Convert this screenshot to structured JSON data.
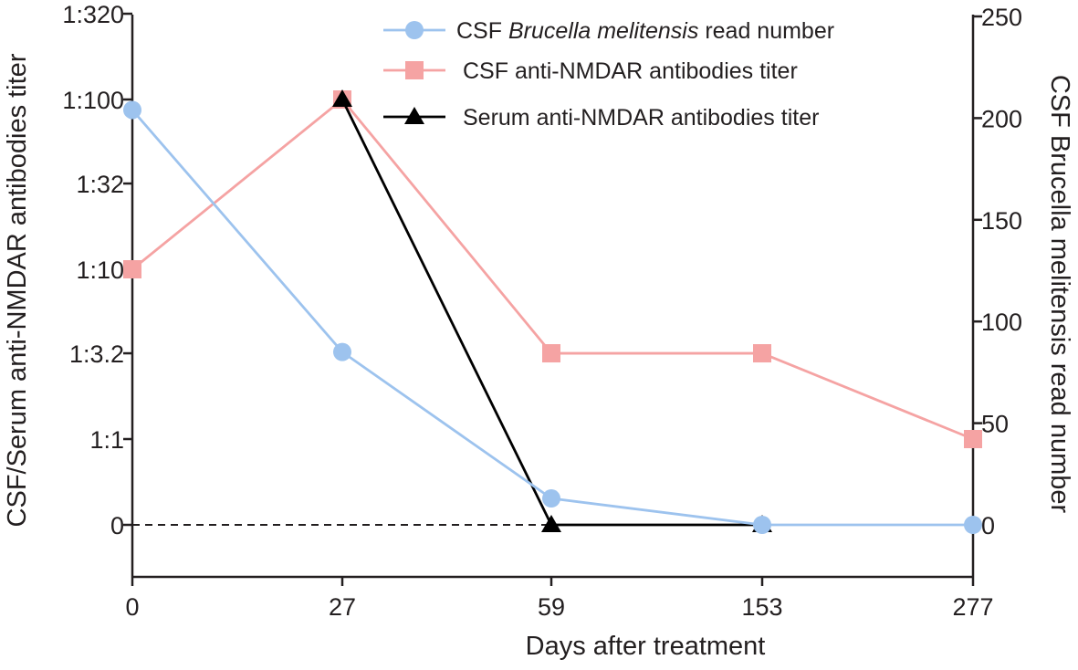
{
  "chart_data": {
    "type": "line",
    "xlabel": "Days after treatment",
    "categories": [
      "0",
      "27",
      "59",
      "153",
      "277"
    ],
    "left_axis": {
      "label": "CSF/Serum anti-NMDAR antibodies titer",
      "tick_labels": [
        "0",
        "1:1",
        "1:3.2",
        "1:10",
        "1:32",
        "1:100",
        "1:320"
      ],
      "scale": "log10 titer levels shown as ordinal ticks (0 = undetectable)"
    },
    "right_axis": {
      "label": "CSF Brucella melitensis read number",
      "ticks": [
        0,
        50,
        100,
        150,
        200,
        250
      ],
      "ylim": [
        0,
        250
      ]
    },
    "series": [
      {
        "name": "CSF Brucella melitensis read number",
        "name_plain": "CSF ",
        "name_italic": "Brucella melitensis",
        "name_rest": " read number",
        "axis": "right",
        "marker": "circle",
        "color": "#9dc3ee",
        "values": [
          204,
          85,
          13,
          0,
          0
        ]
      },
      {
        "name": "CSF anti-NMDAR antibodies titer",
        "axis": "left",
        "marker": "square",
        "color": "#f5a3a3",
        "values": [
          "1:10",
          "1:100",
          "1:3.2",
          "1:3.2",
          "1:1"
        ]
      },
      {
        "name": "Serum anti-NMDAR antibodies titer",
        "axis": "left",
        "marker": "triangle",
        "color": "#000000",
        "values": [
          null,
          "1:100",
          "0",
          "0",
          null
        ]
      }
    ],
    "reference_line": {
      "value": "0",
      "axis": "left",
      "style": "dashed",
      "x_range": [
        "0",
        "59"
      ]
    },
    "legend_position": "top-right",
    "grid": false
  }
}
